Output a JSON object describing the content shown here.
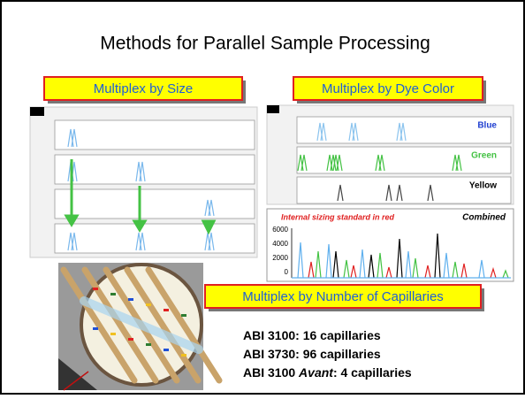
{
  "title": "Methods for Parallel Sample Processing",
  "size_panel": {
    "label": "Multiplex by Size"
  },
  "dye_panel": {
    "label": "Multiplex by Dye Color",
    "channels": [
      "Blue",
      "Green",
      "Yellow"
    ],
    "combined": {
      "note": "Internal sizing standard in red",
      "label": "Combined",
      "yticks": [
        "6000",
        "4000",
        "2000",
        "0"
      ]
    }
  },
  "capillary_panel": {
    "label": "Multiplex by Number of Capillaries",
    "lines": [
      {
        "prefix": "ABI 3100: 16 capillaries"
      },
      {
        "prefix": "ABI 3730: 96 capillaries"
      },
      {
        "prefix": "ABI 3100 ",
        "italic": "Avant",
        "suffix": ": 4 capillaries"
      }
    ]
  }
}
